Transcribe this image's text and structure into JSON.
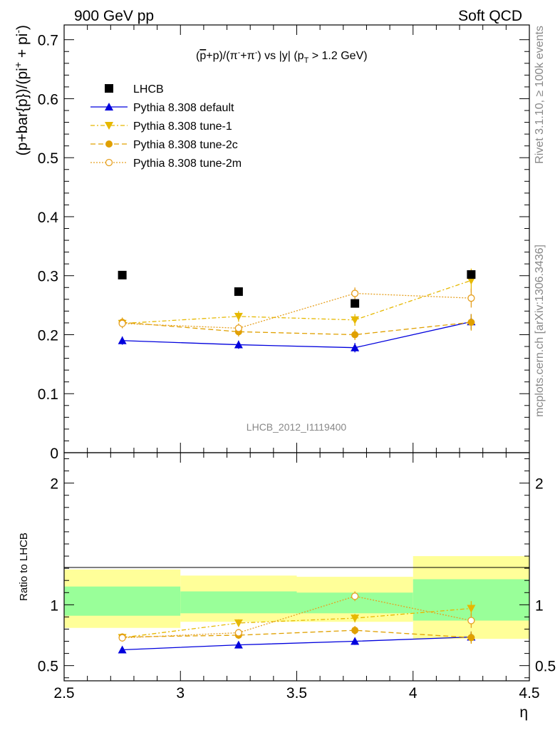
{
  "header": {
    "left": "900 GeV pp",
    "right": "Soft QCD"
  },
  "side_labels": {
    "rivet": "Rivet 3.1.10, ≥ 100k events",
    "mcplots": "mcplots.cern.ch [arXiv:1306.3436]"
  },
  "colors": {
    "data": "#000000",
    "default": "#0000dd",
    "tune1": "#e6b800",
    "tune2c": "#e0a000",
    "tune2m": "#e6a020",
    "band_inner": "#99ff99",
    "band_outer": "#ffff99"
  },
  "chart_data": [
    {
      "type": "scatter",
      "title": "(p̅+p)/(π⁻+π⁻) vs |y| (p_T > 1.2 GeV)",
      "title_parts": {
        "a": "(",
        "pbar": "p",
        "b": "+p)/(π",
        "c": "+π",
        "d": ") vs |y| (p",
        "e": " > 1.2 GeV)",
        "sub_T": "T",
        "sup_minus": "-"
      },
      "ylabel": "(p+bar{p})/(pi⁺ + pi⁻)",
      "ylabel_parts": {
        "main": "(p+bar{p})/(pi",
        "sup_plus": "+",
        "mid": " + pi",
        "sup_minus": "-",
        "close": ")"
      },
      "watermark": "LHCB_2012_I1119400",
      "ylim": [
        0,
        0.725
      ],
      "xlim": [
        2.5,
        4.5
      ],
      "yticks": [
        "0",
        "0.1",
        "0.2",
        "0.3",
        "0.4",
        "0.5",
        "0.6",
        "0.7"
      ],
      "x": [
        2.75,
        3.25,
        3.75,
        4.25
      ],
      "series": [
        {
          "name": "LHCB",
          "key": "data",
          "values": [
            0.301,
            0.273,
            0.253,
            0.302
          ],
          "errors": [
            0.003,
            0.003,
            0.004,
            0.005
          ]
        },
        {
          "name": "Pythia 8.308 default",
          "key": "default",
          "values": [
            0.19,
            0.183,
            0.178,
            0.222
          ],
          "errors": [
            0.007,
            0.007,
            0.008,
            0.013
          ]
        },
        {
          "name": "Pythia 8.308 tune-1",
          "key": "tune1",
          "values": [
            0.219,
            0.231,
            0.225,
            0.292
          ],
          "errors": [
            0.008,
            0.009,
            0.01,
            0.02
          ]
        },
        {
          "name": "Pythia 8.308 tune-2c",
          "key": "tune2c",
          "values": [
            0.221,
            0.205,
            0.2,
            0.221
          ],
          "errors": [
            0.008,
            0.008,
            0.009,
            0.014
          ]
        },
        {
          "name": "Pythia 8.308 tune-2m",
          "key": "tune2m",
          "values": [
            0.219,
            0.211,
            0.27,
            0.262
          ],
          "errors": [
            0.008,
            0.008,
            0.01,
            0.016
          ]
        }
      ],
      "legend_position": "top-left"
    },
    {
      "type": "scatter",
      "ylabel": "Ratio to LHCB",
      "xlabel": "η",
      "ylim": [
        0.375,
        2.25
      ],
      "xlim": [
        2.5,
        4.5
      ],
      "yticks": [
        "0.5",
        "1",
        "2"
      ],
      "xticks": [
        "2.5",
        "3",
        "3.5",
        "4",
        "4.5"
      ],
      "bands": [
        {
          "x": [
            2.5,
            3.0
          ],
          "inner": [
            0.91,
            1.15
          ],
          "outer": [
            0.81,
            1.29
          ]
        },
        {
          "x": [
            3.0,
            3.5
          ],
          "inner": [
            0.93,
            1.11
          ],
          "outer": [
            0.86,
            1.24
          ]
        },
        {
          "x": [
            3.5,
            4.0
          ],
          "inner": [
            0.93,
            1.1
          ],
          "outer": [
            0.86,
            1.23
          ]
        },
        {
          "x": [
            4.0,
            4.5
          ],
          "inner": [
            0.87,
            1.21
          ],
          "outer": [
            0.72,
            1.4
          ]
        }
      ],
      "x": [
        2.75,
        3.25,
        3.75,
        4.25
      ],
      "series": [
        {
          "name": "Pythia 8.308 default",
          "key": "default",
          "values": [
            0.63,
            0.67,
            0.7,
            0.735
          ],
          "errors": [
            0.025,
            0.025,
            0.03,
            0.045
          ]
        },
        {
          "name": "Pythia 8.308 tune-1",
          "key": "tune1",
          "values": [
            0.73,
            0.85,
            0.89,
            0.97
          ],
          "errors": [
            0.03,
            0.03,
            0.035,
            0.06
          ]
        },
        {
          "name": "Pythia 8.308 tune-2c",
          "key": "tune2c",
          "values": [
            0.735,
            0.75,
            0.79,
            0.73
          ],
          "errors": [
            0.03,
            0.03,
            0.035,
            0.05
          ]
        },
        {
          "name": "Pythia 8.308 tune-2m",
          "key": "tune2m",
          "values": [
            0.728,
            0.77,
            1.07,
            0.87
          ],
          "errors": [
            0.03,
            0.03,
            0.04,
            0.06
          ]
        }
      ]
    }
  ]
}
